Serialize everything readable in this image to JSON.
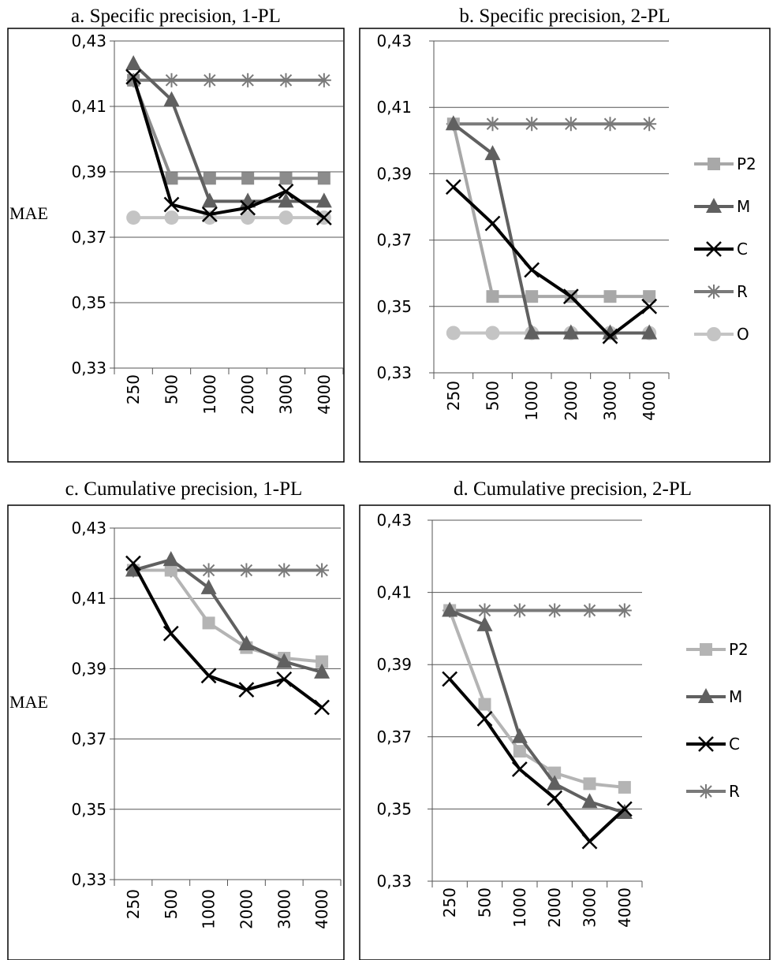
{
  "chart_data": [
    {
      "type": "line",
      "title": "a. Specific precision, 1-PL",
      "ylabel": "MAE",
      "ylim": [
        0.33,
        0.43
      ],
      "yticks": [
        "0,43",
        "0,41",
        "0,39",
        "0,37",
        "0,35",
        "0,33"
      ],
      "categories": [
        "250",
        "500",
        "1000",
        "2000",
        "3000",
        "4000"
      ],
      "legend": "none",
      "series": [
        {
          "name": "R",
          "color": "#7a7a7a",
          "marker": "star",
          "values": [
            0.418,
            0.418,
            0.418,
            0.418,
            0.418,
            0.418
          ]
        },
        {
          "name": "O",
          "color": "#c4c4c4",
          "marker": "circle",
          "values": [
            0.376,
            0.376,
            0.376,
            0.376,
            0.376,
            0.376
          ]
        },
        {
          "name": "P2",
          "color": "#8c8c8c",
          "marker": "square",
          "values": [
            0.418,
            0.388,
            0.388,
            0.388,
            0.388,
            0.388
          ]
        },
        {
          "name": "M",
          "color": "#606060",
          "marker": "triangle",
          "values": [
            0.423,
            0.412,
            0.381,
            0.381,
            0.381,
            0.381
          ]
        },
        {
          "name": "C",
          "color": "#000000",
          "marker": "x",
          "values": [
            0.419,
            0.38,
            0.377,
            0.379,
            0.384,
            0.376
          ]
        }
      ]
    },
    {
      "type": "line",
      "title": "b. Specific precision, 2-PL",
      "ylabel": "",
      "ylim": [
        0.33,
        0.43
      ],
      "yticks": [
        "0,43",
        "0,41",
        "0,39",
        "0,37",
        "0,35",
        "0,33"
      ],
      "categories": [
        "250",
        "500",
        "1000",
        "2000",
        "3000",
        "4000"
      ],
      "legend": "right",
      "series": [
        {
          "name": "R",
          "color": "#7a7a7a",
          "marker": "star",
          "values": [
            0.405,
            0.405,
            0.405,
            0.405,
            0.405,
            0.405
          ]
        },
        {
          "name": "O",
          "color": "#c4c4c4",
          "marker": "circle",
          "values": [
            0.342,
            0.342,
            0.342,
            0.342,
            0.342,
            0.342
          ]
        },
        {
          "name": "P2",
          "color": "#a8a8a8",
          "marker": "square",
          "values": [
            0.405,
            0.353,
            0.353,
            0.353,
            0.353,
            0.353
          ]
        },
        {
          "name": "M",
          "color": "#606060",
          "marker": "triangle",
          "values": [
            0.405,
            0.396,
            0.342,
            0.342,
            0.342,
            0.342
          ]
        },
        {
          "name": "C",
          "color": "#000000",
          "marker": "x",
          "values": [
            0.386,
            0.375,
            0.361,
            0.353,
            0.341,
            0.35
          ]
        }
      ]
    },
    {
      "type": "line",
      "title": "c. Cumulative precision, 1-PL",
      "ylabel": "MAE",
      "ylim": [
        0.33,
        0.43
      ],
      "yticks": [
        "0,43",
        "0,41",
        "0,39",
        "0,37",
        "0,35",
        "0,33"
      ],
      "categories": [
        "250",
        "500",
        "1000",
        "2000",
        "3000",
        "4000"
      ],
      "legend": "none",
      "series": [
        {
          "name": "R",
          "color": "#7a7a7a",
          "marker": "star",
          "values": [
            0.418,
            0.418,
            0.418,
            0.418,
            0.418,
            0.418
          ]
        },
        {
          "name": "P2",
          "color": "#b4b4b4",
          "marker": "square",
          "values": [
            0.418,
            0.418,
            0.403,
            0.396,
            0.393,
            0.392
          ]
        },
        {
          "name": "M",
          "color": "#606060",
          "marker": "triangle",
          "values": [
            0.418,
            0.421,
            0.413,
            0.397,
            0.392,
            0.389
          ]
        },
        {
          "name": "C",
          "color": "#000000",
          "marker": "x",
          "values": [
            0.42,
            0.4,
            0.388,
            0.384,
            0.387,
            0.379
          ]
        }
      ]
    },
    {
      "type": "line",
      "title": "d. Cumulative precision, 2-PL",
      "ylabel": "",
      "ylim": [
        0.33,
        0.43
      ],
      "yticks": [
        "0,43",
        "0,41",
        "0,39",
        "0,37",
        "0,35",
        "0,33"
      ],
      "categories": [
        "250",
        "500",
        "1000",
        "2000",
        "3000",
        "4000"
      ],
      "legend": "right",
      "series": [
        {
          "name": "R",
          "color": "#7a7a7a",
          "marker": "star",
          "values": [
            0.405,
            0.405,
            0.405,
            0.405,
            0.405,
            0.405
          ]
        },
        {
          "name": "P2",
          "color": "#b4b4b4",
          "marker": "square",
          "values": [
            0.405,
            0.379,
            0.366,
            0.36,
            0.357,
            0.356
          ]
        },
        {
          "name": "M",
          "color": "#606060",
          "marker": "triangle",
          "values": [
            0.405,
            0.401,
            0.37,
            0.357,
            0.352,
            0.349
          ]
        },
        {
          "name": "C",
          "color": "#000000",
          "marker": "x",
          "values": [
            0.386,
            0.375,
            0.361,
            0.353,
            0.341,
            0.35
          ]
        }
      ]
    }
  ],
  "legends": {
    "b": [
      "P2",
      "M",
      "C",
      "R",
      "O"
    ],
    "d": [
      "P2",
      "M",
      "C",
      "R"
    ]
  }
}
